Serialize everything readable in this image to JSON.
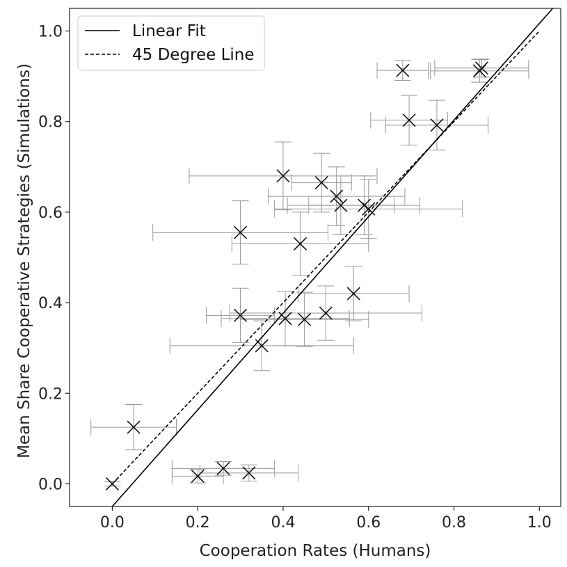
{
  "chart_data": {
    "type": "scatter",
    "title": "",
    "xlabel": "Cooperation Rates (Humans)",
    "ylabel": "Mean Share Cooperative Strategies (Simulations)",
    "xlim": [
      -0.1,
      1.05
    ],
    "ylim": [
      -0.05,
      1.05
    ],
    "xticks": [
      0.0,
      0.2,
      0.4,
      0.6,
      0.8,
      1.0
    ],
    "xtick_labels": [
      "0.0",
      "0.2",
      "0.4",
      "0.6",
      "0.8",
      "1.0"
    ],
    "yticks": [
      0.0,
      0.2,
      0.4,
      0.6,
      0.8,
      1.0
    ],
    "ytick_labels": [
      "0.0",
      "0.2",
      "0.4",
      "0.6",
      "0.8",
      "1.0"
    ],
    "grid": false,
    "legend_position": "top-left",
    "legend": [
      {
        "label": "Linear Fit",
        "style": "solid"
      },
      {
        "label": "45 Degree Line",
        "style": "dashed"
      }
    ],
    "linear_fit": {
      "x": [
        0.0,
        1.05
      ],
      "y": [
        -0.05,
        1.07
      ]
    },
    "degree45": {
      "x": [
        0.0,
        1.0
      ],
      "y": [
        0.0,
        1.0
      ]
    },
    "points": [
      {
        "x": 0.0,
        "y": 0.0,
        "xerr": 0.0,
        "yerr": 0.005
      },
      {
        "x": 0.05,
        "y": 0.125,
        "xerr": 0.1,
        "yerr": 0.05
      },
      {
        "x": 0.2,
        "y": 0.017,
        "xerr": 0.06,
        "yerr": 0.015
      },
      {
        "x": 0.26,
        "y": 0.034,
        "xerr": 0.12,
        "yerr": 0.015
      },
      {
        "x": 0.32,
        "y": 0.024,
        "xerr": 0.115,
        "yerr": 0.018
      },
      {
        "x": 0.3,
        "y": 0.555,
        "xerr": 0.205,
        "yerr": 0.07
      },
      {
        "x": 0.3,
        "y": 0.372,
        "xerr": 0.08,
        "yerr": 0.06
      },
      {
        "x": 0.35,
        "y": 0.305,
        "xerr": 0.215,
        "yerr": 0.055
      },
      {
        "x": 0.4,
        "y": 0.68,
        "xerr": 0.22,
        "yerr": 0.075
      },
      {
        "x": 0.405,
        "y": 0.365,
        "xerr": 0.15,
        "yerr": 0.06
      },
      {
        "x": 0.44,
        "y": 0.53,
        "xerr": 0.16,
        "yerr": 0.07
      },
      {
        "x": 0.45,
        "y": 0.363,
        "xerr": 0.15,
        "yerr": 0.06
      },
      {
        "x": 0.49,
        "y": 0.665,
        "xerr": 0.07,
        "yerr": 0.065
      },
      {
        "x": 0.5,
        "y": 0.377,
        "xerr": 0.225,
        "yerr": 0.06
      },
      {
        "x": 0.525,
        "y": 0.635,
        "xerr": 0.16,
        "yerr": 0.065
      },
      {
        "x": 0.535,
        "y": 0.615,
        "xerr": 0.125,
        "yerr": 0.065
      },
      {
        "x": 0.565,
        "y": 0.42,
        "xerr": 0.13,
        "yerr": 0.06
      },
      {
        "x": 0.59,
        "y": 0.615,
        "xerr": 0.13,
        "yerr": 0.065
      },
      {
        "x": 0.6,
        "y": 0.607,
        "xerr": 0.22,
        "yerr": 0.065
      },
      {
        "x": 0.68,
        "y": 0.913,
        "xerr": 0.06,
        "yerr": 0.022
      },
      {
        "x": 0.695,
        "y": 0.803,
        "xerr": 0.09,
        "yerr": 0.055
      },
      {
        "x": 0.76,
        "y": 0.792,
        "xerr": 0.12,
        "yerr": 0.055
      },
      {
        "x": 0.86,
        "y": 0.912,
        "xerr": 0.115,
        "yerr": 0.025
      },
      {
        "x": 0.865,
        "y": 0.918,
        "xerr": 0.11,
        "yerr": 0.02
      }
    ]
  },
  "colors": {
    "marker": "#111111",
    "errorbar": "#999999",
    "line": "#000000",
    "axis": "#222222"
  }
}
